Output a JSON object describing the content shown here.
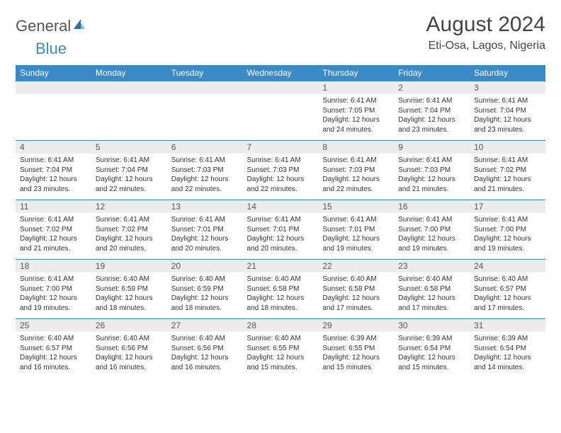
{
  "colors": {
    "header_bg": "#3a8ac8",
    "header_text": "#ffffff",
    "daynum_bg": "#ececec",
    "text": "#333333",
    "rule": "#3a8ac8",
    "logo_blue": "#3a8ac8",
    "logo_gray": "#555555",
    "page_bg": "#ffffff"
  },
  "logo": {
    "general": "General",
    "blue": "Blue"
  },
  "title": "August 2024",
  "location": "Eti-Osa, Lagos, Nigeria",
  "weekdays": [
    "Sunday",
    "Monday",
    "Tuesday",
    "Wednesday",
    "Thursday",
    "Friday",
    "Saturday"
  ],
  "typography": {
    "title_fontsize": 30,
    "location_fontsize": 16,
    "weekday_fontsize": 12,
    "daynum_fontsize": 12,
    "body_fontsize": 10
  },
  "weeks": [
    [
      {
        "n": "",
        "sr": "",
        "ss": "",
        "dl": ""
      },
      {
        "n": "",
        "sr": "",
        "ss": "",
        "dl": ""
      },
      {
        "n": "",
        "sr": "",
        "ss": "",
        "dl": ""
      },
      {
        "n": "",
        "sr": "",
        "ss": "",
        "dl": ""
      },
      {
        "n": "1",
        "sr": "Sunrise: 6:41 AM",
        "ss": "Sunset: 7:05 PM",
        "dl": "Daylight: 12 hours and 24 minutes."
      },
      {
        "n": "2",
        "sr": "Sunrise: 6:41 AM",
        "ss": "Sunset: 7:04 PM",
        "dl": "Daylight: 12 hours and 23 minutes."
      },
      {
        "n": "3",
        "sr": "Sunrise: 6:41 AM",
        "ss": "Sunset: 7:04 PM",
        "dl": "Daylight: 12 hours and 23 minutes."
      }
    ],
    [
      {
        "n": "4",
        "sr": "Sunrise: 6:41 AM",
        "ss": "Sunset: 7:04 PM",
        "dl": "Daylight: 12 hours and 23 minutes."
      },
      {
        "n": "5",
        "sr": "Sunrise: 6:41 AM",
        "ss": "Sunset: 7:04 PM",
        "dl": "Daylight: 12 hours and 22 minutes."
      },
      {
        "n": "6",
        "sr": "Sunrise: 6:41 AM",
        "ss": "Sunset: 7:03 PM",
        "dl": "Daylight: 12 hours and 22 minutes."
      },
      {
        "n": "7",
        "sr": "Sunrise: 6:41 AM",
        "ss": "Sunset: 7:03 PM",
        "dl": "Daylight: 12 hours and 22 minutes."
      },
      {
        "n": "8",
        "sr": "Sunrise: 6:41 AM",
        "ss": "Sunset: 7:03 PM",
        "dl": "Daylight: 12 hours and 22 minutes."
      },
      {
        "n": "9",
        "sr": "Sunrise: 6:41 AM",
        "ss": "Sunset: 7:03 PM",
        "dl": "Daylight: 12 hours and 21 minutes."
      },
      {
        "n": "10",
        "sr": "Sunrise: 6:41 AM",
        "ss": "Sunset: 7:02 PM",
        "dl": "Daylight: 12 hours and 21 minutes."
      }
    ],
    [
      {
        "n": "11",
        "sr": "Sunrise: 6:41 AM",
        "ss": "Sunset: 7:02 PM",
        "dl": "Daylight: 12 hours and 21 minutes."
      },
      {
        "n": "12",
        "sr": "Sunrise: 6:41 AM",
        "ss": "Sunset: 7:02 PM",
        "dl": "Daylight: 12 hours and 20 minutes."
      },
      {
        "n": "13",
        "sr": "Sunrise: 6:41 AM",
        "ss": "Sunset: 7:01 PM",
        "dl": "Daylight: 12 hours and 20 minutes."
      },
      {
        "n": "14",
        "sr": "Sunrise: 6:41 AM",
        "ss": "Sunset: 7:01 PM",
        "dl": "Daylight: 12 hours and 20 minutes."
      },
      {
        "n": "15",
        "sr": "Sunrise: 6:41 AM",
        "ss": "Sunset: 7:01 PM",
        "dl": "Daylight: 12 hours and 19 minutes."
      },
      {
        "n": "16",
        "sr": "Sunrise: 6:41 AM",
        "ss": "Sunset: 7:00 PM",
        "dl": "Daylight: 12 hours and 19 minutes."
      },
      {
        "n": "17",
        "sr": "Sunrise: 6:41 AM",
        "ss": "Sunset: 7:00 PM",
        "dl": "Daylight: 12 hours and 19 minutes."
      }
    ],
    [
      {
        "n": "18",
        "sr": "Sunrise: 6:41 AM",
        "ss": "Sunset: 7:00 PM",
        "dl": "Daylight: 12 hours and 19 minutes."
      },
      {
        "n": "19",
        "sr": "Sunrise: 6:40 AM",
        "ss": "Sunset: 6:59 PM",
        "dl": "Daylight: 12 hours and 18 minutes."
      },
      {
        "n": "20",
        "sr": "Sunrise: 6:40 AM",
        "ss": "Sunset: 6:59 PM",
        "dl": "Daylight: 12 hours and 18 minutes."
      },
      {
        "n": "21",
        "sr": "Sunrise: 6:40 AM",
        "ss": "Sunset: 6:58 PM",
        "dl": "Daylight: 12 hours and 18 minutes."
      },
      {
        "n": "22",
        "sr": "Sunrise: 6:40 AM",
        "ss": "Sunset: 6:58 PM",
        "dl": "Daylight: 12 hours and 17 minutes."
      },
      {
        "n": "23",
        "sr": "Sunrise: 6:40 AM",
        "ss": "Sunset: 6:58 PM",
        "dl": "Daylight: 12 hours and 17 minutes."
      },
      {
        "n": "24",
        "sr": "Sunrise: 6:40 AM",
        "ss": "Sunset: 6:57 PM",
        "dl": "Daylight: 12 hours and 17 minutes."
      }
    ],
    [
      {
        "n": "25",
        "sr": "Sunrise: 6:40 AM",
        "ss": "Sunset: 6:57 PM",
        "dl": "Daylight: 12 hours and 16 minutes."
      },
      {
        "n": "26",
        "sr": "Sunrise: 6:40 AM",
        "ss": "Sunset: 6:56 PM",
        "dl": "Daylight: 12 hours and 16 minutes."
      },
      {
        "n": "27",
        "sr": "Sunrise: 6:40 AM",
        "ss": "Sunset: 6:56 PM",
        "dl": "Daylight: 12 hours and 16 minutes."
      },
      {
        "n": "28",
        "sr": "Sunrise: 6:40 AM",
        "ss": "Sunset: 6:55 PM",
        "dl": "Daylight: 12 hours and 15 minutes."
      },
      {
        "n": "29",
        "sr": "Sunrise: 6:39 AM",
        "ss": "Sunset: 6:55 PM",
        "dl": "Daylight: 12 hours and 15 minutes."
      },
      {
        "n": "30",
        "sr": "Sunrise: 6:39 AM",
        "ss": "Sunset: 6:54 PM",
        "dl": "Daylight: 12 hours and 15 minutes."
      },
      {
        "n": "31",
        "sr": "Sunrise: 6:39 AM",
        "ss": "Sunset: 6:54 PM",
        "dl": "Daylight: 12 hours and 14 minutes."
      }
    ]
  ]
}
